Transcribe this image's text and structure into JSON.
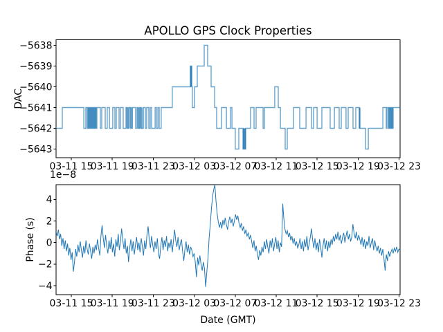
{
  "title": "APOLLO GPS Clock Properties",
  "colors": {
    "line": "#1f77b4",
    "axis": "#000000",
    "background": "#ffffff"
  },
  "chart_data": [
    {
      "type": "step-line",
      "name": "dac-vs-time",
      "title": "APOLLO GPS Clock Properties",
      "ylabel": "DAC",
      "yticks": [
        -5638,
        -5639,
        -5640,
        -5641,
        -5642,
        -5643
      ],
      "ytick_labels": [
        "−5638",
        "−5639",
        "−5640",
        "−5641",
        "−5642",
        "−5643"
      ],
      "ylim": [
        -5643.45,
        -5637.75
      ],
      "xtick_labels": [
        "03-11 15",
        "03-11 19",
        "03-11 23",
        "03-12 03",
        "03-12 07",
        "03-12 11",
        "03-12 15",
        "03-12 19",
        "03-12 23"
      ],
      "xtick_hours": [
        15,
        19,
        23,
        27,
        31,
        35,
        39,
        43,
        47
      ],
      "xlim_hours": [
        13.51,
        47.1
      ],
      "grid": false,
      "legend": null,
      "steps": [
        [
          13.51,
          -5642
        ],
        [
          14.12,
          -5641
        ],
        [
          16.22,
          -5642
        ],
        [
          16.42,
          -5641
        ],
        [
          16.55,
          -5642
        ],
        [
          16.62,
          -5641
        ],
        [
          16.69,
          -5642
        ],
        [
          16.76,
          -5641
        ],
        [
          16.83,
          -5642
        ],
        [
          16.9,
          -5641
        ],
        [
          16.97,
          -5642
        ],
        [
          17.04,
          -5641
        ],
        [
          17.11,
          -5642
        ],
        [
          17.18,
          -5641
        ],
        [
          17.25,
          -5642
        ],
        [
          17.32,
          -5641
        ],
        [
          17.39,
          -5642
        ],
        [
          17.5,
          -5641
        ],
        [
          17.84,
          -5642
        ],
        [
          17.97,
          -5641
        ],
        [
          18.31,
          -5642
        ],
        [
          18.51,
          -5641
        ],
        [
          18.72,
          -5642
        ],
        [
          19.05,
          -5641
        ],
        [
          19.26,
          -5642
        ],
        [
          19.39,
          -5641
        ],
        [
          19.66,
          -5642
        ],
        [
          19.8,
          -5641
        ],
        [
          20.07,
          -5642
        ],
        [
          20.34,
          -5641
        ],
        [
          20.47,
          -5642
        ],
        [
          20.61,
          -5641
        ],
        [
          20.81,
          -5642
        ],
        [
          20.95,
          -5641
        ],
        [
          21.28,
          -5642
        ],
        [
          21.42,
          -5641
        ],
        [
          21.55,
          -5642
        ],
        [
          21.69,
          -5641
        ],
        [
          21.82,
          -5642
        ],
        [
          22.03,
          -5641
        ],
        [
          22.23,
          -5642
        ],
        [
          22.36,
          -5641
        ],
        [
          22.57,
          -5642
        ],
        [
          22.7,
          -5641
        ],
        [
          22.84,
          -5642
        ],
        [
          23.18,
          -5641
        ],
        [
          23.31,
          -5642
        ],
        [
          23.45,
          -5641
        ],
        [
          23.58,
          -5642
        ],
        [
          23.78,
          -5641
        ],
        [
          24.86,
          -5640
        ],
        [
          26.62,
          -5639
        ],
        [
          26.76,
          -5640
        ],
        [
          26.82,
          -5641
        ],
        [
          27.03,
          -5640
        ],
        [
          27.3,
          -5639
        ],
        [
          27.97,
          -5638
        ],
        [
          28.31,
          -5639
        ],
        [
          28.65,
          -5640
        ],
        [
          28.99,
          -5641
        ],
        [
          29.19,
          -5642
        ],
        [
          29.66,
          -5641
        ],
        [
          30.14,
          -5642
        ],
        [
          30.54,
          -5641
        ],
        [
          30.68,
          -5642
        ],
        [
          31.01,
          -5643
        ],
        [
          31.35,
          -5642
        ],
        [
          31.76,
          -5643
        ],
        [
          32.03,
          -5642
        ],
        [
          32.5,
          -5641
        ],
        [
          32.84,
          -5642
        ],
        [
          33.04,
          -5641
        ],
        [
          33.72,
          -5642
        ],
        [
          33.85,
          -5641
        ],
        [
          34.86,
          -5640
        ],
        [
          35.2,
          -5641
        ],
        [
          35.41,
          -5642
        ],
        [
          35.88,
          -5643
        ],
        [
          36.08,
          -5642
        ],
        [
          36.69,
          -5641
        ],
        [
          37.3,
          -5642
        ],
        [
          37.91,
          -5641
        ],
        [
          38.45,
          -5642
        ],
        [
          38.65,
          -5641
        ],
        [
          38.99,
          -5642
        ],
        [
          39.46,
          -5641
        ],
        [
          40.27,
          -5642
        ],
        [
          40.68,
          -5641
        ],
        [
          41.15,
          -5642
        ],
        [
          41.35,
          -5641
        ],
        [
          41.82,
          -5642
        ],
        [
          42.03,
          -5641
        ],
        [
          42.5,
          -5642
        ],
        [
          42.77,
          -5641
        ],
        [
          43.11,
          -5642
        ],
        [
          43.72,
          -5643
        ],
        [
          43.99,
          -5642
        ],
        [
          45.41,
          -5641
        ],
        [
          45.74,
          -5642
        ],
        [
          45.81,
          -5641
        ],
        [
          45.95,
          -5642
        ],
        [
          46.02,
          -5641
        ],
        [
          46.09,
          -5642
        ],
        [
          46.16,
          -5641
        ],
        [
          46.23,
          -5642
        ],
        [
          46.3,
          -5641
        ],
        [
          46.37,
          -5642
        ],
        [
          46.42,
          -5641
        ]
      ],
      "dense_bars": [
        {
          "t0": 16.62,
          "t1": 17.5,
          "dac_lo": -5642,
          "dac_hi": -5641,
          "opacity": 0.5
        },
        {
          "t0": 20.34,
          "t1": 21.0,
          "dac_lo": -5642,
          "dac_hi": -5641,
          "opacity": 0.45
        },
        {
          "t0": 21.42,
          "t1": 22.05,
          "dac_lo": -5642,
          "dac_hi": -5641,
          "opacity": 0.45
        },
        {
          "t0": 26.6,
          "t1": 26.78,
          "dac_lo": -5640,
          "dac_hi": -5639,
          "opacity": 0.85
        },
        {
          "t0": 31.76,
          "t1": 32.03,
          "dac_lo": -5643,
          "dac_hi": -5642,
          "opacity": 0.85
        },
        {
          "t0": 43.08,
          "t1": 43.22,
          "dac_lo": -5642,
          "dac_hi": -5641,
          "opacity": 0.85
        },
        {
          "t0": 45.95,
          "t1": 46.42,
          "dac_lo": -5642,
          "dac_hi": -5641,
          "opacity": 0.5
        }
      ]
    },
    {
      "type": "line",
      "name": "phase-vs-time",
      "ylabel": "Phase (s)",
      "xlabel": "Date (GMT)",
      "offset_text": "1e−8",
      "y_scale_factor": 1e-08,
      "yticks": [
        4,
        2,
        0,
        -2,
        -4
      ],
      "ytick_labels": [
        "4",
        "2",
        "0",
        "−2",
        "−4"
      ],
      "ylim": [
        -4.85,
        5.37
      ],
      "xtick_labels": [
        "03-11 15",
        "03-11 19",
        "03-11 23",
        "03-12 03",
        "03-12 07",
        "03-12 11",
        "03-12 15",
        "03-12 19",
        "03-12 23"
      ],
      "xtick_hours": [
        15,
        19,
        23,
        27,
        31,
        35,
        39,
        43,
        47
      ],
      "xlim_hours": [
        13.51,
        47.1
      ],
      "grid": false,
      "legend": null,
      "values_1e8": [
        1.0,
        0.6,
        1.2,
        0.3,
        0.8,
        -0.3,
        0.4,
        -0.6,
        0.2,
        -0.8,
        -0.1,
        -1.2,
        -0.5,
        -1.6,
        -0.9,
        -2.7,
        -1.8,
        -0.6,
        -1.3,
        -0.2,
        -0.9,
        0.1,
        -0.7,
        -1.4,
        -0.3,
        -1.0,
        0.2,
        -0.6,
        -1.1,
        -0.1,
        -0.8,
        -1.5,
        -0.4,
        -1.0,
        -0.2,
        -0.7,
        0.3,
        -0.5,
        -1.2,
        0.6,
        1.6,
        0.4,
        -0.5,
        0.7,
        -0.3,
        -1.0,
        0.2,
        -0.6,
        0.5,
        -0.9,
        -0.1,
        -1.3,
        0.3,
        -0.4,
        0.8,
        -0.7,
        0.1,
        1.3,
        0.2,
        -0.6,
        0.4,
        -1.0,
        -0.3,
        -1.8,
        -0.5,
        0.3,
        -0.8,
        0.1,
        -1.1,
        -0.2,
        0.5,
        -0.7,
        0.0,
        -0.9,
        0.4,
        -0.4,
        -1.2,
        0.2,
        -0.6,
        0.7,
        1.5,
        0.3,
        -0.5,
        0.6,
        -0.2,
        -0.9,
        0.1,
        -0.6,
        0.4,
        -1.0,
        -1.5,
        -0.3,
        0.5,
        -0.7,
        0.2,
        -0.4,
        0.6,
        -0.8,
        0.0,
        -0.5,
        0.3,
        -0.9,
        0.1,
        1.2,
        0.2,
        -0.4,
        0.5,
        -0.7,
        -0.1,
        0.3,
        -0.8,
        -1.7,
        -0.6,
        0.1,
        -0.9,
        -0.2,
        -1.1,
        -0.4,
        -0.7,
        -1.3,
        -1.0,
        -1.8,
        -3.2,
        -1.4,
        -2.1,
        -1.2,
        -2.0,
        -2.6,
        -1.8,
        -2.4,
        -4.1,
        -2.8,
        -1.5,
        0.4,
        1.6,
        3.1,
        4.3,
        4.9,
        5.35,
        3.9,
        2.7,
        1.9,
        1.4,
        1.9,
        1.3,
        2.1,
        1.6,
        2.3,
        1.7,
        1.2,
        1.9,
        2.4,
        1.8,
        2.2,
        1.5,
        2.0,
        2.6,
        2.1,
        2.5,
        1.8,
        1.4,
        1.8,
        1.1,
        1.5,
        0.8,
        1.2,
        0.6,
        0.9,
        0.3,
        0.7,
        0.1,
        -0.5,
        0.2,
        -0.8,
        -0.3,
        -1.1,
        -1.6,
        -0.7,
        -1.2,
        -0.4,
        -0.9,
        0.1,
        -0.6,
        0.3,
        -0.4,
        -1.0,
        0.2,
        -0.5,
        0.4,
        -0.8,
        -0.1,
        0.5,
        -0.6,
        0.2,
        -0.9,
        0.0,
        -0.4,
        3.6,
        2.2,
        1.2,
        0.8,
        1.1,
        0.5,
        0.9,
        0.2,
        0.6,
        -0.1,
        0.4,
        -0.3,
        0.1,
        -0.5,
        -0.2,
        0.4,
        -0.6,
        0.1,
        -0.8,
        0.3,
        -0.4,
        0.6,
        -0.7,
        -0.1,
        0.5,
        1.3,
        0.2,
        -0.5,
        0.4,
        -0.7,
        0.0,
        -0.9,
        0.3,
        -0.4,
        -1.4,
        -0.3,
        0.4,
        -0.6,
        0.2,
        -0.8,
        0.1,
        -0.5,
        0.3,
        -0.2,
        0.6,
        0.1,
        0.8,
        0.3,
        1.0,
        0.2,
        0.7,
        -0.1,
        0.5,
        0.9,
        0.0,
        0.6,
        1.1,
        0.3,
        0.8,
        0.1,
        0.5,
        1.7,
        0.9,
        0.4,
        1.0,
        0.2,
        0.7,
        0.3,
        -0.2,
        0.5,
        -0.4,
        0.3,
        -0.6,
        0.1,
        -0.3,
        0.6,
        -0.5,
        0.0,
        0.4,
        -0.7,
        0.2,
        -0.4,
        -0.8,
        -0.3,
        -1.0,
        -0.5,
        -1.2,
        -0.6,
        -1.5,
        -2.6,
        -1.1,
        -1.7,
        -0.8,
        -1.3,
        -0.9,
        -0.6,
        -1.0,
        -0.5,
        -0.8,
        -0.4,
        -0.9,
        -0.6,
        -0.7
      ]
    }
  ]
}
